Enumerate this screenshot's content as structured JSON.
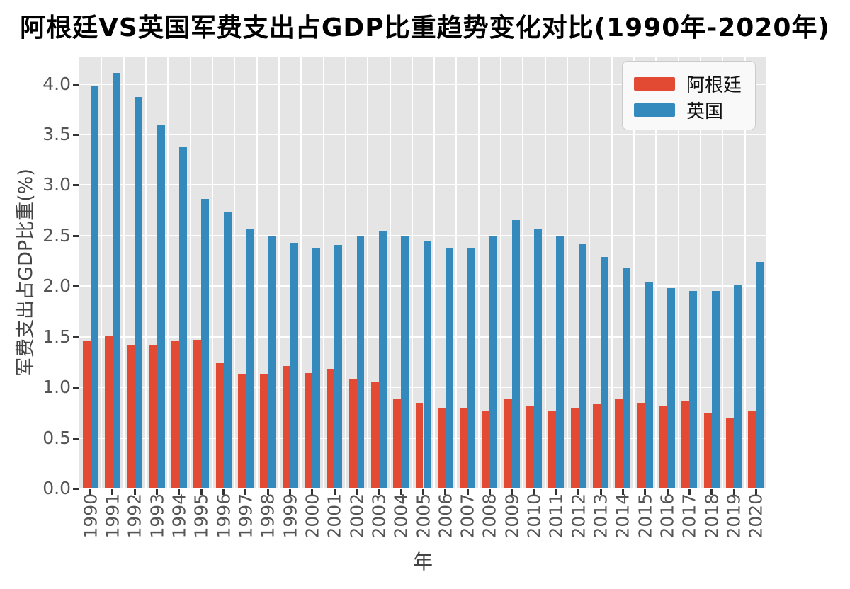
{
  "title": "阿根廷VS英国军费支出占GDP比重趋势变化对比(1990年-2020年)",
  "chart_data": {
    "type": "bar",
    "title": "阿根廷VS英国军费支出占GDP比重趋势变化对比(1990年-2020年)",
    "xlabel": "年",
    "ylabel": "军费支出占GDP比重(%)",
    "categories": [
      "1990",
      "1991",
      "1992",
      "1993",
      "1994",
      "1995",
      "1996",
      "1997",
      "1998",
      "1999",
      "2000",
      "2001",
      "2002",
      "2003",
      "2004",
      "2005",
      "2006",
      "2007",
      "2008",
      "2009",
      "2010",
      "2011",
      "2012",
      "2013",
      "2014",
      "2015",
      "2016",
      "2017",
      "2018",
      "2019",
      "2020"
    ],
    "series": [
      {
        "name": "阿根廷",
        "color": "#E24A33",
        "values": [
          1.46,
          1.51,
          1.42,
          1.42,
          1.46,
          1.47,
          1.24,
          1.13,
          1.13,
          1.21,
          1.14,
          1.18,
          1.08,
          1.06,
          0.88,
          0.85,
          0.79,
          0.8,
          0.76,
          0.88,
          0.81,
          0.76,
          0.79,
          0.84,
          0.88,
          0.85,
          0.81,
          0.86,
          0.74,
          0.7,
          0.76
        ]
      },
      {
        "name": "英国",
        "color": "#348ABD",
        "values": [
          3.98,
          4.11,
          3.87,
          3.59,
          3.38,
          2.86,
          2.73,
          2.56,
          2.5,
          2.43,
          2.37,
          2.41,
          2.49,
          2.55,
          2.5,
          2.44,
          2.38,
          2.38,
          2.49,
          2.65,
          2.57,
          2.5,
          2.42,
          2.29,
          2.18,
          2.04,
          1.98,
          1.95,
          1.95,
          2.01,
          2.24
        ]
      }
    ],
    "ylim": [
      0,
      4.27
    ],
    "yticks": [
      0.0,
      0.5,
      1.0,
      1.5,
      2.0,
      2.5,
      3.0,
      3.5,
      4.0
    ],
    "grid": true,
    "grid_color": "#FFFFFF",
    "plot_bg": "#E5E5E5",
    "legend_position": "upper right"
  }
}
